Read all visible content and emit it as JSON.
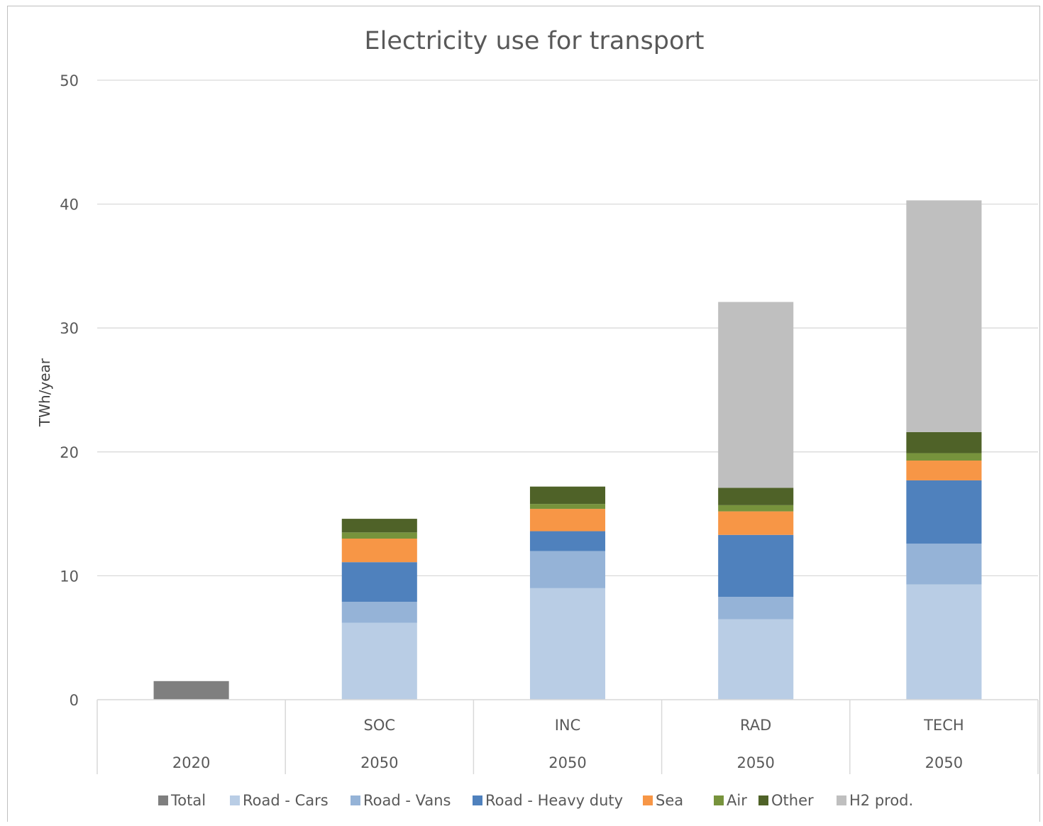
{
  "colors": {
    "Total": "#7f7f7f",
    "Road - Cars": "#b9cde5",
    "Road - Vans": "#95b3d7",
    "Road - Heavy duty": "#4f81bd",
    "Sea": "#f79646",
    "Air": "#77933c",
    "Other": "#4f6228",
    "H2 prod.": "#bfbfbf"
  },
  "chart_data": {
    "type": "bar",
    "stacked": true,
    "title": "Electricity use for transport",
    "ylabel": "TWh/year",
    "xlabel": "",
    "ylim": [
      0,
      50
    ],
    "yticks": [
      0,
      10,
      20,
      30,
      40,
      50
    ],
    "grid": true,
    "legend_position": "bottom",
    "categories": [
      {
        "scenario": "",
        "year": "2020"
      },
      {
        "scenario": "SOC",
        "year": "2050"
      },
      {
        "scenario": "INC",
        "year": "2050"
      },
      {
        "scenario": "RAD",
        "year": "2050"
      },
      {
        "scenario": "TECH",
        "year": "2050"
      }
    ],
    "series": [
      {
        "name": "Total",
        "values": [
          1.5,
          0,
          0,
          0,
          0
        ]
      },
      {
        "name": "Road - Cars",
        "values": [
          0,
          6.2,
          9.0,
          6.5,
          9.3
        ]
      },
      {
        "name": "Road - Vans",
        "values": [
          0,
          1.7,
          3.0,
          1.8,
          3.3
        ]
      },
      {
        "name": "Road - Heavy duty",
        "values": [
          0,
          3.2,
          1.6,
          5.0,
          5.1
        ]
      },
      {
        "name": "Sea",
        "values": [
          0,
          1.9,
          1.8,
          1.9,
          1.6
        ]
      },
      {
        "name": "Air",
        "values": [
          0,
          0.5,
          0.4,
          0.5,
          0.6
        ]
      },
      {
        "name": "Other",
        "values": [
          0,
          1.1,
          1.4,
          1.4,
          1.7
        ]
      },
      {
        "name": "H2 prod.",
        "values": [
          0,
          0,
          0,
          15.0,
          18.7
        ]
      }
    ]
  }
}
